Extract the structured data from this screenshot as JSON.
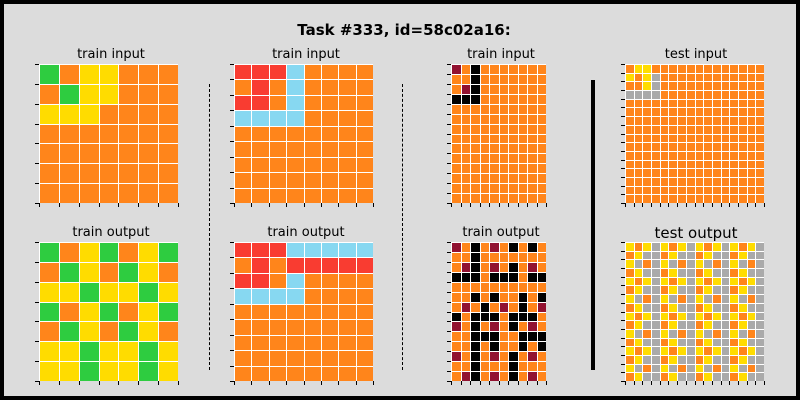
{
  "title": "Task #333, id=58c02a16:",
  "colors": {
    "0": "#000000",
    "1": "#1e93ff",
    "2": "#f93c31",
    "3": "#2ecc40",
    "4": "#ffdc00",
    "5": "#aaaaaa",
    "6": "#e53aa3",
    "7": "#ff851b",
    "8": "#87d8f1",
    "9": "#921231"
  },
  "panels": [
    {
      "label": "train input",
      "grid": [
        "3744777",
        "7344777",
        "4447777",
        "7777777",
        "7777777",
        "7777777",
        "7777777"
      ]
    },
    {
      "label": "train output",
      "grid": [
        "3743743",
        "7347347",
        "4434434",
        "3743743",
        "7347347",
        "4434434",
        "4434434"
      ]
    },
    {
      "label": "train input",
      "grid": [
        "22287777",
        "72787777",
        "22787777",
        "88887777",
        "77777777",
        "77777777",
        "77777777",
        "77777777",
        "77777777"
      ]
    },
    {
      "label": "train output",
      "grid": [
        "22288888",
        "72722222",
        "22787777",
        "88887777",
        "77777777",
        "77777777",
        "77777777",
        "77777777",
        "77777777"
      ]
    },
    {
      "label": "train input",
      "grid": [
        "9707777777",
        "7707777777",
        "7907777777",
        "0007777777",
        "7777777777",
        "7777777777",
        "7777777777",
        "7777777777",
        "7777777777",
        "7777777777",
        "7777777777",
        "7777777777",
        "7777777777",
        "7777777777"
      ]
    },
    {
      "label": "train output",
      "grid": [
        "9707970707",
        "7707777777",
        "7907970797",
        "0007000700",
        "7777777777",
        "7707077070",
        "7970797079",
        "0700070007",
        "9707970797",
        "7700077000",
        "7707077070",
        "9707970797",
        "7707770777",
        "7907970797"
      ]
    },
    {
      "label": "test input",
      "grid": [
        "7447777777777777",
        "4745777777777777",
        "7745777777777777",
        "5555777777777777",
        "7777777777777777",
        "7777777777777777",
        "7777777777777777",
        "7777777777777777",
        "7777777777777777",
        "7777777777777777",
        "7777777777777777",
        "7777777777777777",
        "7777777777777777",
        "7777777777777777",
        "7777777777777777",
        "7777777777777777"
      ]
    },
    {
      "label": "test output",
      "grid": [
        "4745474547454745",
        "7455745574557455",
        "4575457545754575",
        "7455745574557455",
        "4745474547454745",
        "7455745574557455",
        "4575457545754575",
        "7455745574557455",
        "4745474547454745",
        "7455745574557455",
        "4575457545754575",
        "7455745574557455",
        "4745474547454745",
        "7455745574557455",
        "4575457545754575",
        "7455745574557455"
      ]
    }
  ]
}
